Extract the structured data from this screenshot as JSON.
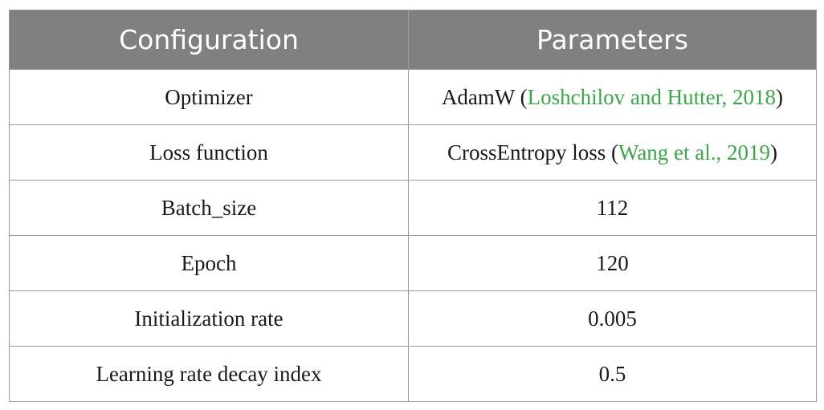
{
  "table": {
    "headers": {
      "configuration": "Configuration",
      "parameters": "Parameters"
    },
    "rows": [
      {
        "config": "Optimizer",
        "param": "AdamW",
        "open": " (",
        "cite": "Loshchilov and Hutter, 2018",
        "close": ")"
      },
      {
        "config": "Loss function",
        "param": "CrossEntropy loss",
        "open": " (",
        "cite": "Wang et al., 2019",
        "close": ")"
      },
      {
        "config": "Batch_size",
        "param": "112"
      },
      {
        "config": "Epoch",
        "param": "120"
      },
      {
        "config": "Initialization rate",
        "param": "0.005"
      },
      {
        "config": "Learning rate decay index",
        "param": "0.5"
      }
    ]
  },
  "colors": {
    "header_bg": "#808080",
    "header_text": "#ffffff",
    "citation_link": "#3aa846",
    "border": "#9a9a9a"
  }
}
